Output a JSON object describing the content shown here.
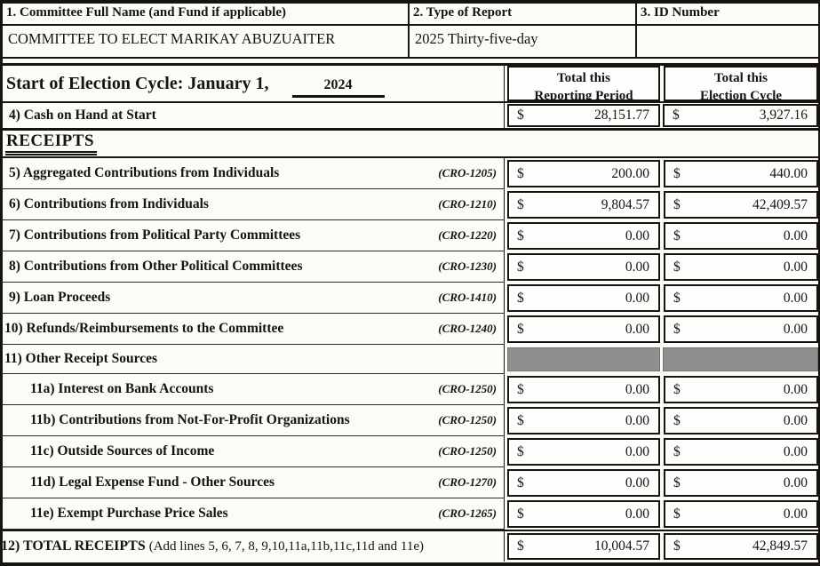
{
  "colors": {
    "paper": "#fbfbf8",
    "ink": "#161310",
    "shaded_cell": "#8f8f8f"
  },
  "currency": "$",
  "header": {
    "committee_label": "1. Committee Full Name (and Fund if applicable)",
    "report_label": "2. Type of Report",
    "id_label": "3. ID Number",
    "committee_value": "COMMITTEE TO ELECT MARIKAY ABUZUAITER",
    "report_value": "2025 Thirty-five-day",
    "id_value": ""
  },
  "cycle": {
    "label": "Start of Election Cycle: January 1,",
    "year": "2024",
    "col1_line1": "Total this",
    "col1_line2": "Reporting Period",
    "col2_line1": "Total this",
    "col2_line2": "Election Cycle"
  },
  "cash_row": {
    "label": "4) Cash on Hand at Start",
    "reporting": "28,151.77",
    "cycle": "3,927.16"
  },
  "receipts": {
    "section_title": "RECEIPTS",
    "rows": [
      {
        "label": "5) Aggregated Contributions from Individuals",
        "cro": "(CRO-1205)",
        "reporting": "200.00",
        "cycle": "440.00"
      },
      {
        "label": "6) Contributions from Individuals",
        "cro": "(CRO-1210)",
        "reporting": "9,804.57",
        "cycle": "42,409.57"
      },
      {
        "label": "7) Contributions from Political Party Committees",
        "cro": "(CRO-1220)",
        "reporting": "0.00",
        "cycle": "0.00"
      },
      {
        "label": "8) Contributions from Other Political Committees",
        "cro": "(CRO-1230)",
        "reporting": "0.00",
        "cycle": "0.00"
      },
      {
        "label": "9) Loan Proceeds",
        "cro": "(CRO-1410)",
        "reporting": "0.00",
        "cycle": "0.00"
      },
      {
        "label": "10) Refunds/Reimbursements to the Committee",
        "cro": "(CRO-1240)",
        "reporting": "0.00",
        "cycle": "0.00"
      },
      {
        "label": "11) Other Receipt Sources",
        "cro": "",
        "reporting": "",
        "cycle": ""
      },
      {
        "label": "11a) Interest on Bank Accounts",
        "cro": "(CRO-1250)",
        "reporting": "0.00",
        "cycle": "0.00"
      },
      {
        "label": "11b) Contributions from Not-For-Profit Organizations",
        "cro": "(CRO-1250)",
        "reporting": "0.00",
        "cycle": "0.00"
      },
      {
        "label": "11c) Outside Sources of Income",
        "cro": "(CRO-1250)",
        "reporting": "0.00",
        "cycle": "0.00"
      },
      {
        "label": "11d) Legal Expense Fund - Other Sources",
        "cro": "(CRO-1270)",
        "reporting": "0.00",
        "cycle": "0.00"
      },
      {
        "label": "11e) Exempt Purchase Price Sales",
        "cro": "(CRO-1265)",
        "reporting": "0.00",
        "cycle": "0.00"
      }
    ]
  },
  "total_row": {
    "label": "12) TOTAL RECEIPTS",
    "note": "(Add lines 5, 6, 7, 8, 9,10,11a,11b,11c,11d and 11e)",
    "reporting": "10,004.57",
    "cycle": "42,849.57"
  }
}
